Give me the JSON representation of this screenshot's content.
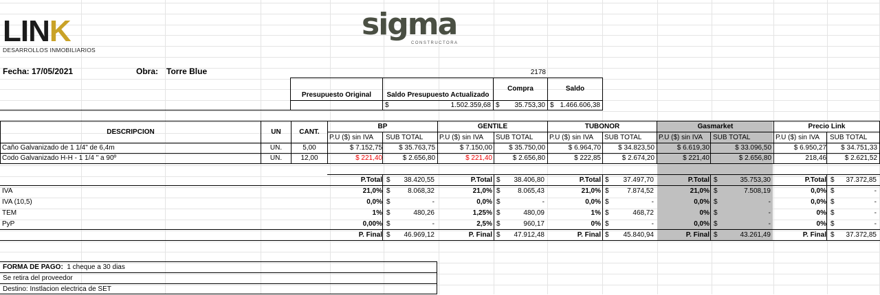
{
  "logos": {
    "link_main": "LIN",
    "link_k": "K",
    "link_sub": "DESARROLLOS INMOBILIARIOS",
    "sigma_main": "sigma",
    "sigma_sub": "CONSTRUCTORA"
  },
  "header": {
    "fecha": "Fecha: 17/05/2021",
    "obra_label": "Obra:",
    "obra_value": "Torre Blue",
    "ref_number": "2178"
  },
  "budget": {
    "col_labels": [
      "Presupuesto Original",
      "Saldo Presupuesto Actualizado",
      "Compra",
      "Saldo"
    ],
    "saldo_actualizado": "1.502.359,68",
    "compra": "35.753,30",
    "saldo": "1.466.606,38",
    "currency": "$"
  },
  "table": {
    "descripcion": "DESCRIPCION",
    "un": "UN",
    "cant": "CANT.",
    "vendors": [
      "BP",
      "GENTILE",
      "TUBONOR",
      "Gasmarket",
      "Precio Link"
    ],
    "pu_label": "P.U ($) sin IVA",
    "sub_label": "SUB TOTAL",
    "items": [
      {
        "desc": "Caño Galvanizado de 1 1/4\" de 6,4m",
        "un": "UN.",
        "cant": "5,00",
        "prices": [
          [
            "$ 7.152,75",
            "$ 35.763,75"
          ],
          [
            "$ 7.150,00",
            "$ 35.750,00"
          ],
          [
            "$ 6.964,70",
            "$ 34.823,50"
          ],
          [
            "$ 6.619,30",
            "$ 33.096,50"
          ],
          [
            "$ 6.950,27",
            "$ 34.751,33"
          ]
        ]
      },
      {
        "desc": "Codo Galvanizado H-H - 1 1/4 \" a 90º",
        "un": "UN.",
        "cant": "12,00",
        "prices": [
          [
            "$ 221,40",
            "$ 2.656,80"
          ],
          [
            "$ 221,40",
            "$ 2.656,80"
          ],
          [
            "$ 222,85",
            "$ 2.674,20"
          ],
          [
            "$ 221,40",
            "$ 2.656,80"
          ],
          [
            "218,46",
            "$ 2.621,52"
          ]
        ]
      }
    ],
    "totals_label": "P.Total",
    "totals": [
      "38.420,55",
      "38.406,80",
      "37.497,70",
      "35.753,30",
      "37.372,85"
    ],
    "tax_rows": [
      {
        "label": "IVA",
        "values": [
          [
            "21,0%",
            "8.068,32"
          ],
          [
            "21,0%",
            "8.065,43"
          ],
          [
            "21,0%",
            "7.874,52"
          ],
          [
            "21,0%",
            "7.508,19"
          ],
          [
            "0,0%",
            "-"
          ]
        ]
      },
      {
        "label": "IVA (10,5)",
        "values": [
          [
            "0,0%",
            "-"
          ],
          [
            "0,0%",
            "-"
          ],
          [
            "0,0%",
            "-"
          ],
          [
            "0,0%",
            "-"
          ],
          [
            "0,0%",
            "-"
          ]
        ]
      },
      {
        "label": "TEM",
        "values": [
          [
            "1%",
            "480,26"
          ],
          [
            "1,25%",
            "480,09"
          ],
          [
            "1%",
            "468,72"
          ],
          [
            "0%",
            "-"
          ],
          [
            "0%",
            "-"
          ]
        ]
      },
      {
        "label": "PyP",
        "values": [
          [
            "0,00%",
            "-"
          ],
          [
            "2,5%",
            "960,17"
          ],
          [
            "0%",
            "-"
          ],
          [
            "0,0%",
            "-"
          ],
          [
            "0%",
            "-"
          ]
        ]
      }
    ],
    "final_label": "P. Final",
    "finals": [
      "46.969,12",
      "47.912,48",
      "45.840,94",
      "43.261,49",
      "37.372,85"
    ]
  },
  "footer": {
    "forma_pago_label": "FORMA DE PAGO:",
    "forma_pago_value": "1 cheque a 30 dias",
    "retiro": "Se retira del proveedor",
    "destino": "Destino: Instlacion electrica de SET"
  }
}
